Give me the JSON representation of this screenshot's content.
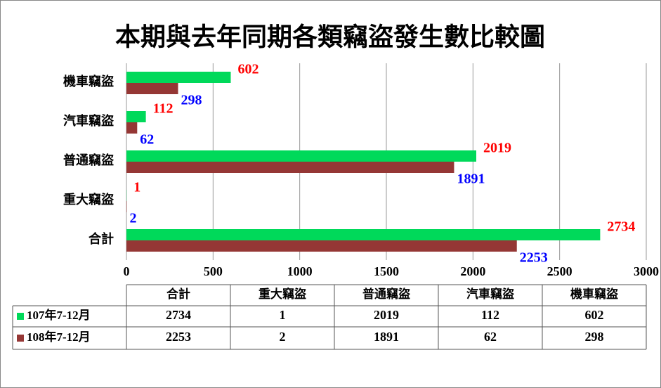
{
  "chart_data": {
    "type": "bar",
    "orientation": "horizontal",
    "title": "本期與去年同期各類竊盜發生數比較圖",
    "categories": [
      "合計",
      "重大竊盜",
      "普通竊盜",
      "汽車竊盜",
      "機車竊盜"
    ],
    "series": [
      {
        "name": "107年7-12月",
        "color": "#00d95a",
        "label_color": "#ff0000",
        "values": [
          2734,
          1,
          2019,
          112,
          602
        ]
      },
      {
        "name": "108年7-12月",
        "color": "#953735",
        "label_color": "#0000ff",
        "values": [
          2253,
          2,
          1891,
          62,
          298
        ]
      }
    ],
    "xlim": [
      0,
      3000
    ],
    "xticks": [
      0,
      500,
      1000,
      1500,
      2000,
      2500,
      3000
    ],
    "grid": true,
    "data_table": true
  }
}
